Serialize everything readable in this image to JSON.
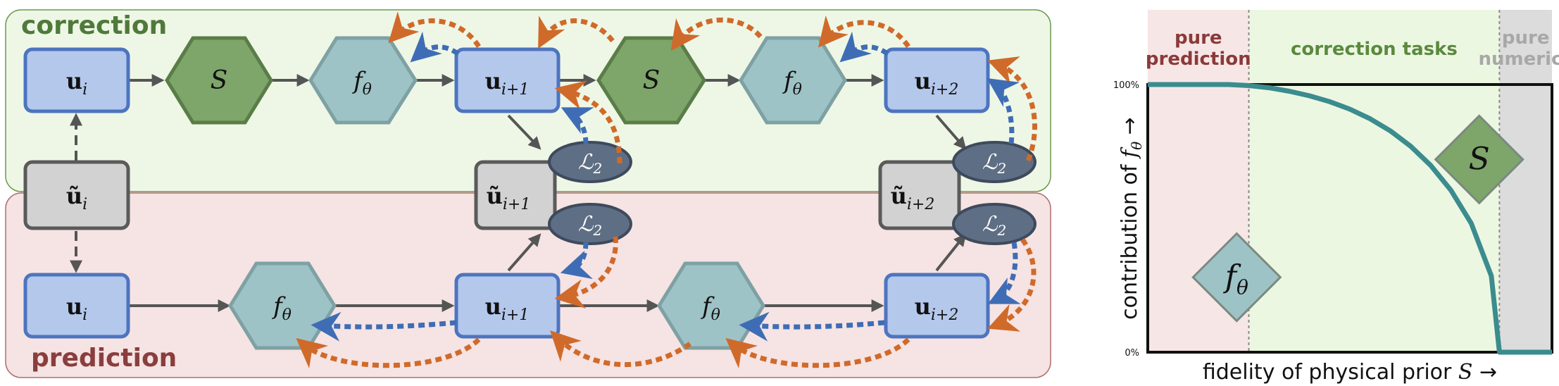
{
  "diagram": {
    "panels": {
      "correction": "correction",
      "prediction": "prediction"
    },
    "nodes": {
      "corr_u_i": "u",
      "corr_u_i_sub": "i",
      "corr_S1": "S",
      "corr_f1": "f",
      "corr_f1_sub": "θ",
      "corr_u_i1": "u",
      "corr_u_i1_sub": "i+1",
      "corr_S2": "S",
      "corr_f2": "f",
      "corr_f2_sub": "θ",
      "corr_u_i2": "u",
      "corr_u_i2_sub": "i+2",
      "tilde_u_i": "ũ",
      "tilde_u_i_sub": "i",
      "tilde_u_i1": "ũ",
      "tilde_u_i1_sub": "i+1",
      "tilde_u_i2": "ũ",
      "tilde_u_i2_sub": "i+2",
      "loss_c1": "ℒ",
      "loss_c1_sub": "2",
      "loss_p1": "ℒ",
      "loss_p1_sub": "2",
      "loss_c2": "ℒ",
      "loss_c2_sub": "2",
      "loss_p2": "ℒ",
      "loss_p2_sub": "2",
      "pred_u_i": "u",
      "pred_u_i_sub": "i",
      "pred_f1": "f",
      "pred_f1_sub": "θ",
      "pred_u_i1": "u",
      "pred_u_i1_sub": "i+1",
      "pred_f2": "f",
      "pred_f2_sub": "θ",
      "pred_u_i2": "u",
      "pred_u_i2_sub": "i+2"
    },
    "colors": {
      "corr_bg": "#eef7e6",
      "corr_border": "#6a9a4e",
      "pred_bg": "#f6e3e3",
      "pred_border": "#b06e6e",
      "u_fill": "#b4c8ec",
      "u_border": "#4d74bf",
      "tilde_fill": "#d2d2d2",
      "tilde_border": "#5a5a5a",
      "S_fill": "#7ea56a",
      "S_border": "#5a7d48",
      "f_fill": "#9ec3c6",
      "f_border": "#7ea1a3",
      "loss_fill": "#5e6e84",
      "loss_border": "#3e4a5c",
      "arrow_gray": "#555555",
      "arrow_orange": "#d06a2a",
      "arrow_blue": "#3f6db5"
    }
  },
  "chart_data": {
    "type": "line",
    "xlabel_text": "fidelity of physical prior",
    "xlabel_symbol": "S",
    "xlabel_arrow": "→",
    "ylabel_text": "contribution of",
    "ylabel_symbol": "f",
    "ylabel_symbol_sub": "θ",
    "ylabel_arrow": "→",
    "yticks": [
      "100%",
      "0%"
    ],
    "regions": [
      {
        "label_lines": [
          "pure",
          "prediction"
        ],
        "color": "#f7e6e6",
        "text_color": "#8a3a3a"
      },
      {
        "label_lines": [
          "correction tasks"
        ],
        "color": "#ecf7e2",
        "text_color": "#5a8a3e"
      },
      {
        "label_lines": [
          "pure",
          "numerics"
        ],
        "color": "#dcdcdc",
        "text_color": "#a8a8a8"
      }
    ],
    "x_range": [
      0,
      1
    ],
    "x_region_bounds": [
      0.25,
      0.87
    ],
    "ylim": [
      0,
      100
    ],
    "curve": {
      "x": [
        0,
        0.1,
        0.2,
        0.25,
        0.3,
        0.35,
        0.4,
        0.45,
        0.5,
        0.55,
        0.6,
        0.65,
        0.7,
        0.75,
        0.8,
        0.85,
        0.87,
        0.9,
        1.0
      ],
      "y": [
        100,
        100,
        100,
        99.6,
        98.8,
        97.5,
        95.8,
        93.6,
        90.8,
        87.2,
        82.7,
        77,
        69.8,
        60.5,
        48.2,
        28.5,
        0,
        0,
        0
      ],
      "color": "#3b8c8e"
    },
    "markers": [
      {
        "symbol": "f",
        "sub": "θ",
        "color": "#9ec3c6"
      },
      {
        "symbol": "S",
        "sub": "",
        "color": "#7ea56a"
      }
    ]
  }
}
